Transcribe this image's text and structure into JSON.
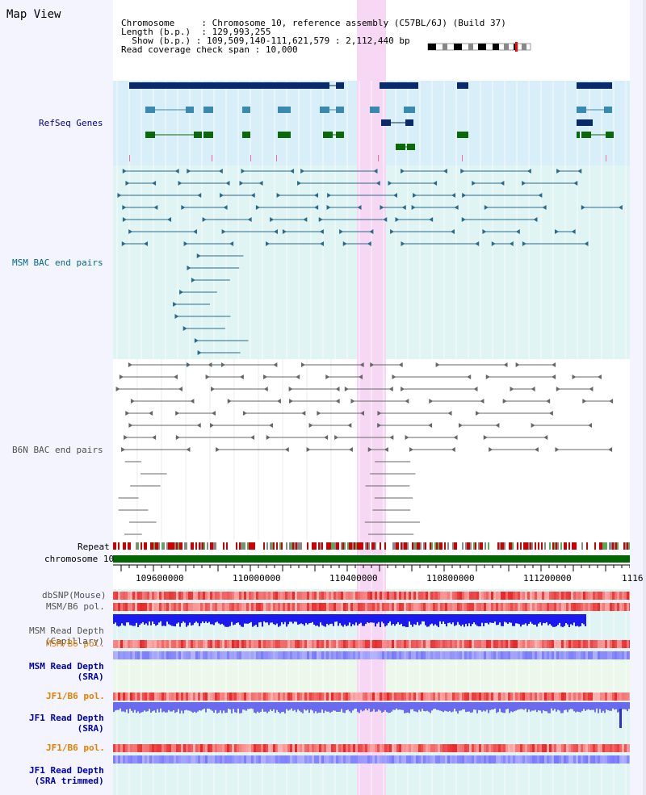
{
  "page": {
    "title": "Map View"
  },
  "info": {
    "chromosome_label": "Chromosome",
    "chromosome_value": "Chromosome 10, reference assembly (C57BL/6J) (Build 37)",
    "length_label": "Length (b.p.)",
    "length_value": "129,993,255",
    "show_label": "Show (b.p.)",
    "show_value": "109,509,140-111,621,579 : 2,112,440 bp",
    "coverage_label": "Read coverage check span",
    "coverage_value": "10,000"
  },
  "tracks": {
    "refseq": "RefSeq Genes",
    "msm_bac": "MSM BAC end pairs",
    "b6n_bac": "B6N BAC end pairs",
    "repeat": "Repeat",
    "chromosome": "chromosome 10",
    "dbsnp": "dbSNP(Mouse)",
    "msm_b6_pol_1": "MSM/B6 pol.",
    "msm_read_depth_cap_1": "MSM Read Depth",
    "msm_read_depth_cap_2": "(Capillary)",
    "msm_b6_pol_2": "MSM/B6 pol.",
    "msm_read_depth_sra_1": "MSM Read Depth",
    "msm_read_depth_sra_2": "(SRA)",
    "jf1_b6_pol_1": "JF1/B6 pol.",
    "jf1_read_depth_sra_1": "JF1 Read Depth",
    "jf1_read_depth_sra_2": "(SRA)",
    "jf1_b6_pol_2": "JF1/B6 pol.",
    "jf1_read_depth_trim_1": "JF1 Read Depth",
    "jf1_read_depth_trim_2": "(SRA trimmed)"
  },
  "axis": {
    "ticks": [
      "109600000",
      "110000000",
      "110400000",
      "110800000",
      "111200000",
      "1116"
    ]
  },
  "colors": {
    "refseq_bg": "#d8eef8",
    "msm_bg": "#e0f4f4",
    "highlight": "#f6d8f4",
    "refseq_label": "#00008b",
    "msm_label": "#006b8b",
    "b6n_label": "#505050",
    "gene_dark": "#0a2a6a",
    "gene_mid": "#3a8ab0",
    "gene_green": "#0a6a0a",
    "chrom_bar": "#006600",
    "orange_label": "#e08000",
    "blue_label": "#0000aa"
  }
}
